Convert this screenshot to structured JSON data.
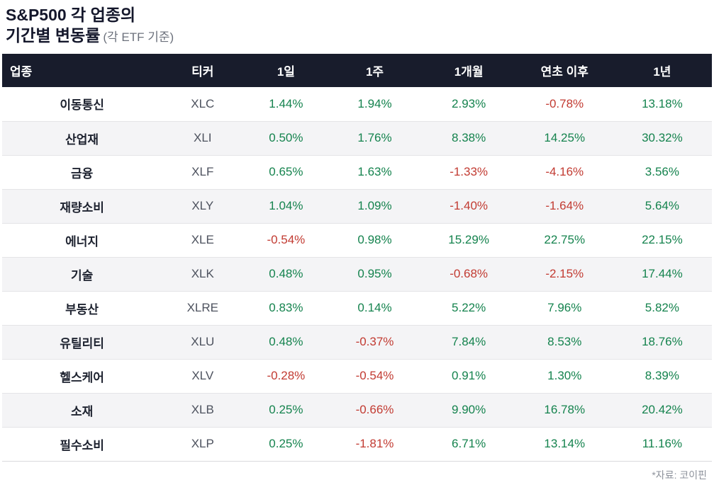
{
  "title": {
    "line1": "S&P500 각 업종의",
    "line2": "기간별 변동률",
    "subtitle": "(각 ETF 기준)"
  },
  "source_note": "*자료: 코이핀",
  "colors": {
    "positive": "#15834e",
    "negative": "#c23b32",
    "header_bg": "#181c2c",
    "header_text": "#ffffff",
    "alt_row_bg": "#f4f4f6",
    "sector_text": "#1e2330",
    "ticker_text": "#4d525e"
  },
  "chart_data": {
    "type": "table",
    "title": "S&P500 각 업종의 기간별 변동률 (각 ETF 기준)",
    "columns": [
      "업종",
      "티커",
      "1일",
      "1주",
      "1개월",
      "연초 이후",
      "1년"
    ],
    "rows": [
      {
        "sector": "이동통신",
        "ticker": "XLC",
        "changes": [
          "1.44%",
          "1.94%",
          "2.93%",
          "-0.78%",
          "13.18%"
        ]
      },
      {
        "sector": "산업재",
        "ticker": "XLI",
        "changes": [
          "0.50%",
          "1.76%",
          "8.38%",
          "14.25%",
          "30.32%"
        ]
      },
      {
        "sector": "금융",
        "ticker": "XLF",
        "changes": [
          "0.65%",
          "1.63%",
          "-1.33%",
          "-4.16%",
          "3.56%"
        ]
      },
      {
        "sector": "재량소비",
        "ticker": "XLY",
        "changes": [
          "1.04%",
          "1.09%",
          "-1.40%",
          "-1.64%",
          "5.64%"
        ]
      },
      {
        "sector": "에너지",
        "ticker": "XLE",
        "changes": [
          "-0.54%",
          "0.98%",
          "15.29%",
          "22.75%",
          "22.15%"
        ]
      },
      {
        "sector": "기술",
        "ticker": "XLK",
        "changes": [
          "0.48%",
          "0.95%",
          "-0.68%",
          "-2.15%",
          "17.44%"
        ]
      },
      {
        "sector": "부동산",
        "ticker": "XLRE",
        "changes": [
          "0.83%",
          "0.14%",
          "5.22%",
          "7.96%",
          "5.82%"
        ]
      },
      {
        "sector": "유틸리티",
        "ticker": "XLU",
        "changes": [
          "0.48%",
          "-0.37%",
          "7.84%",
          "8.53%",
          "18.76%"
        ]
      },
      {
        "sector": "헬스케어",
        "ticker": "XLV",
        "changes": [
          "-0.28%",
          "-0.54%",
          "0.91%",
          "1.30%",
          "8.39%"
        ]
      },
      {
        "sector": "소재",
        "ticker": "XLB",
        "changes": [
          "0.25%",
          "-0.66%",
          "9.90%",
          "16.78%",
          "20.42%"
        ]
      },
      {
        "sector": "필수소비",
        "ticker": "XLP",
        "changes": [
          "0.25%",
          "-1.81%",
          "6.71%",
          "13.14%",
          "11.16%"
        ]
      }
    ]
  }
}
